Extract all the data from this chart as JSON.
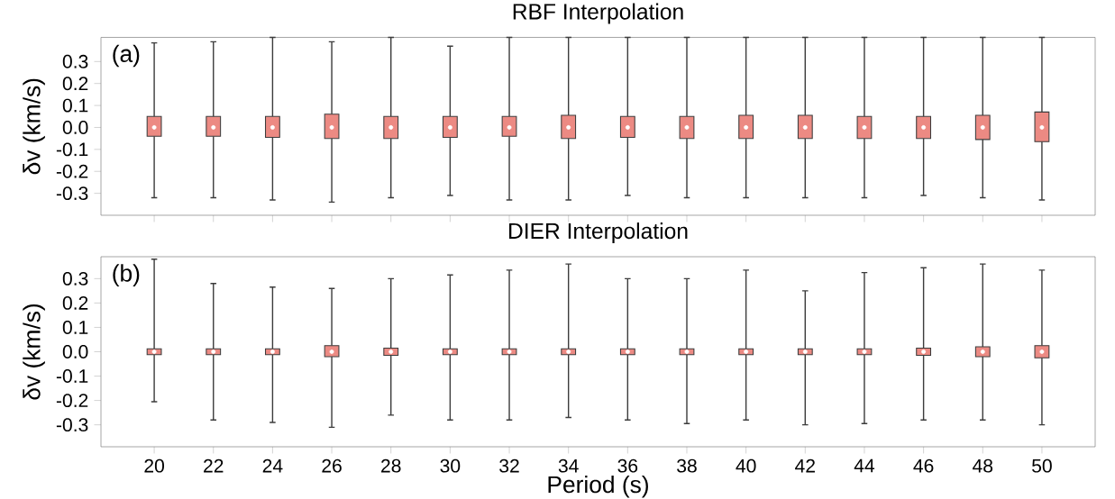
{
  "chart_data": [
    {
      "type": "box",
      "title": "RBF Interpolation",
      "ylabel": "δv (km/s)",
      "annotations": [
        "(a)"
      ],
      "tick_labels": "y",
      "color": "#ec8a83",
      "categories": [
        "20",
        "22",
        "24",
        "26",
        "28",
        "30",
        "32",
        "34",
        "36",
        "38",
        "40",
        "42",
        "44",
        "46",
        "48",
        "50"
      ],
      "ylim": [
        -0.4,
        0.41
      ],
      "yticks": [
        -0.3,
        -0.2,
        -0.1,
        {
          "value": 0,
          "label": "0.0"
        },
        0.1,
        0.2,
        0.3
      ],
      "boxes": [
        {
          "low": -0.32,
          "q1": -0.04,
          "median": 0,
          "q3": 0.05,
          "high": 0.385
        },
        {
          "low": -0.32,
          "q1": -0.04,
          "median": 0,
          "q3": 0.05,
          "high": 0.39
        },
        {
          "low": -0.33,
          "q1": -0.045,
          "median": 0,
          "q3": 0.05,
          "high": 0.41
        },
        {
          "low": -0.34,
          "q1": -0.05,
          "median": 0,
          "q3": 0.06,
          "high": 0.39
        },
        {
          "low": -0.32,
          "q1": -0.05,
          "median": 0,
          "q3": 0.05,
          "high": 0.41
        },
        {
          "low": -0.31,
          "q1": -0.045,
          "median": 0,
          "q3": 0.05,
          "high": 0.37
        },
        {
          "low": -0.33,
          "q1": -0.04,
          "median": 0,
          "q3": 0.05,
          "high": 0.41
        },
        {
          "low": -0.33,
          "q1": -0.05,
          "median": 0,
          "q3": 0.055,
          "high": 0.41
        },
        {
          "low": -0.31,
          "q1": -0.045,
          "median": 0,
          "q3": 0.05,
          "high": 0.41
        },
        {
          "low": -0.32,
          "q1": -0.05,
          "median": 0,
          "q3": 0.05,
          "high": 0.41
        },
        {
          "low": -0.32,
          "q1": -0.05,
          "median": 0,
          "q3": 0.055,
          "high": 0.41
        },
        {
          "low": -0.32,
          "q1": -0.05,
          "median": 0,
          "q3": 0.055,
          "high": 0.41
        },
        {
          "low": -0.32,
          "q1": -0.05,
          "median": 0,
          "q3": 0.05,
          "high": 0.41
        },
        {
          "low": -0.31,
          "q1": -0.05,
          "median": 0,
          "q3": 0.05,
          "high": 0.41
        },
        {
          "low": -0.32,
          "q1": -0.055,
          "median": 0,
          "q3": 0.055,
          "high": 0.41
        },
        {
          "low": -0.33,
          "q1": -0.065,
          "median": 0,
          "q3": 0.07,
          "high": 0.41
        }
      ]
    },
    {
      "type": "box",
      "title": "DIER Interpolation",
      "xlabel": "Period (s)",
      "ylabel": "δv (km/s)",
      "annotations": [
        "(b)"
      ],
      "color": "#ec8a83",
      "categories": [
        "20",
        "22",
        "24",
        "26",
        "28",
        "30",
        "32",
        "34",
        "36",
        "38",
        "40",
        "42",
        "44",
        "46",
        "48",
        "50"
      ],
      "ylim": [
        -0.39,
        0.39
      ],
      "yticks": [
        -0.3,
        -0.2,
        -0.1,
        {
          "value": 0,
          "label": "0.0"
        },
        0.1,
        0.2,
        0.3
      ],
      "boxes": [
        {
          "low": -0.205,
          "q1": -0.012,
          "median": 0,
          "q3": 0.012,
          "high": 0.38
        },
        {
          "low": -0.28,
          "q1": -0.012,
          "median": 0,
          "q3": 0.012,
          "high": 0.28
        },
        {
          "low": -0.29,
          "q1": -0.012,
          "median": 0,
          "q3": 0.012,
          "high": 0.265
        },
        {
          "low": -0.31,
          "q1": -0.02,
          "median": 0,
          "q3": 0.025,
          "high": 0.26
        },
        {
          "low": -0.26,
          "q1": -0.015,
          "median": 0,
          "q3": 0.015,
          "high": 0.3
        },
        {
          "low": -0.28,
          "q1": -0.012,
          "median": 0,
          "q3": 0.012,
          "high": 0.315
        },
        {
          "low": -0.28,
          "q1": -0.012,
          "median": 0,
          "q3": 0.012,
          "high": 0.335
        },
        {
          "low": -0.27,
          "q1": -0.012,
          "median": 0,
          "q3": 0.012,
          "high": 0.36
        },
        {
          "low": -0.28,
          "q1": -0.012,
          "median": 0,
          "q3": 0.012,
          "high": 0.3
        },
        {
          "low": -0.295,
          "q1": -0.012,
          "median": 0,
          "q3": 0.012,
          "high": 0.3
        },
        {
          "low": -0.28,
          "q1": -0.012,
          "median": 0,
          "q3": 0.012,
          "high": 0.335
        },
        {
          "low": -0.3,
          "q1": -0.012,
          "median": 0,
          "q3": 0.012,
          "high": 0.25
        },
        {
          "low": -0.295,
          "q1": -0.012,
          "median": 0,
          "q3": 0.012,
          "high": 0.325
        },
        {
          "low": -0.28,
          "q1": -0.015,
          "median": 0,
          "q3": 0.015,
          "high": 0.345
        },
        {
          "low": -0.28,
          "q1": -0.02,
          "median": 0,
          "q3": 0.02,
          "high": 0.36
        },
        {
          "low": -0.3,
          "q1": -0.025,
          "median": 0,
          "q3": 0.025,
          "high": 0.335
        }
      ]
    }
  ]
}
